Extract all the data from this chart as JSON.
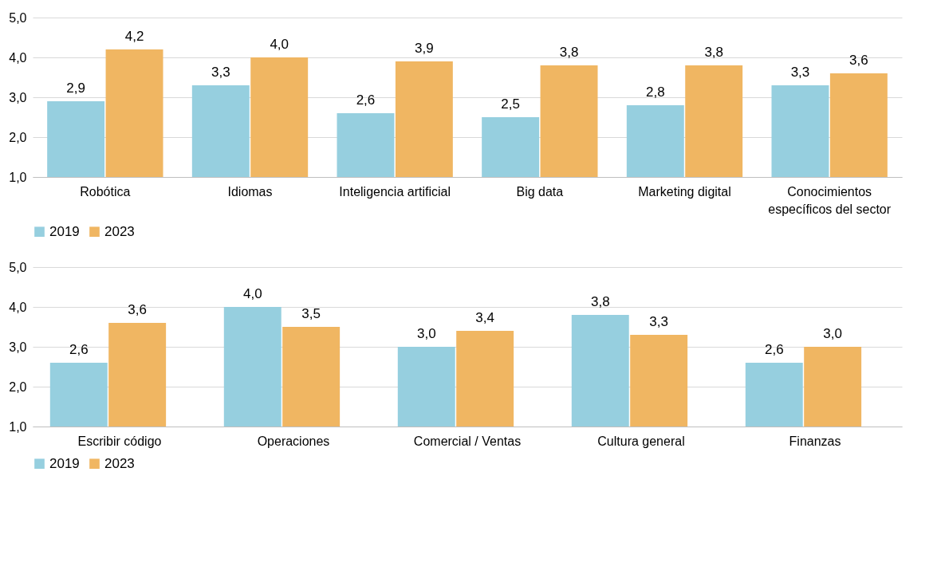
{
  "chart_data": [
    {
      "type": "bar",
      "categories": [
        "Robótica",
        "Idiomas",
        "Inteligencia artificial",
        "Big data",
        "Marketing digital",
        "Conocimientos específicos del sector"
      ],
      "series": [
        {
          "name": "2019",
          "color": "#96cfdf",
          "values": [
            2.9,
            3.3,
            2.6,
            2.5,
            2.8,
            3.3
          ],
          "value_labels": [
            "2,9",
            "3,3",
            "2,6",
            "2,5",
            "2,8",
            "3,3"
          ]
        },
        {
          "name": "2023",
          "color": "#f0b662",
          "values": [
            4.2,
            4.0,
            3.9,
            3.8,
            3.8,
            3.6
          ],
          "value_labels": [
            "4,2",
            "4,0",
            "3,9",
            "3,8",
            "3,8",
            "3,6"
          ]
        }
      ],
      "ylim": [
        1,
        5
      ],
      "yticks": [
        {
          "value": 1,
          "label": "1,0"
        },
        {
          "value": 2,
          "label": "2,0"
        },
        {
          "value": 3,
          "label": "3,0"
        },
        {
          "value": 4,
          "label": "4,0"
        },
        {
          "value": 5,
          "label": "5,0"
        }
      ],
      "grid": "y",
      "legend": "bottom"
    },
    {
      "type": "bar",
      "categories": [
        "Escribir código",
        "Operaciones",
        "Comercial / Ventas",
        "Cultura general",
        "Finanzas"
      ],
      "series": [
        {
          "name": "2019",
          "color": "#96cfdf",
          "values": [
            2.6,
            4.0,
            3.0,
            3.8,
            2.6
          ],
          "value_labels": [
            "2,6",
            "4,0",
            "3,0",
            "3,8",
            "2,6"
          ]
        },
        {
          "name": "2023",
          "color": "#f0b662",
          "values": [
            3.6,
            3.5,
            3.4,
            3.3,
            3.0
          ],
          "value_labels": [
            "3,6",
            "3,5",
            "3,4",
            "3,3",
            "3,0"
          ]
        }
      ],
      "ylim": [
        1,
        5
      ],
      "yticks": [
        {
          "value": 1,
          "label": "1,0"
        },
        {
          "value": 2,
          "label": "2,0"
        },
        {
          "value": 3,
          "label": "3,0"
        },
        {
          "value": 4,
          "label": "4,0"
        },
        {
          "value": 5,
          "label": "5,0"
        }
      ],
      "grid": "y",
      "legend": "bottom"
    }
  ]
}
